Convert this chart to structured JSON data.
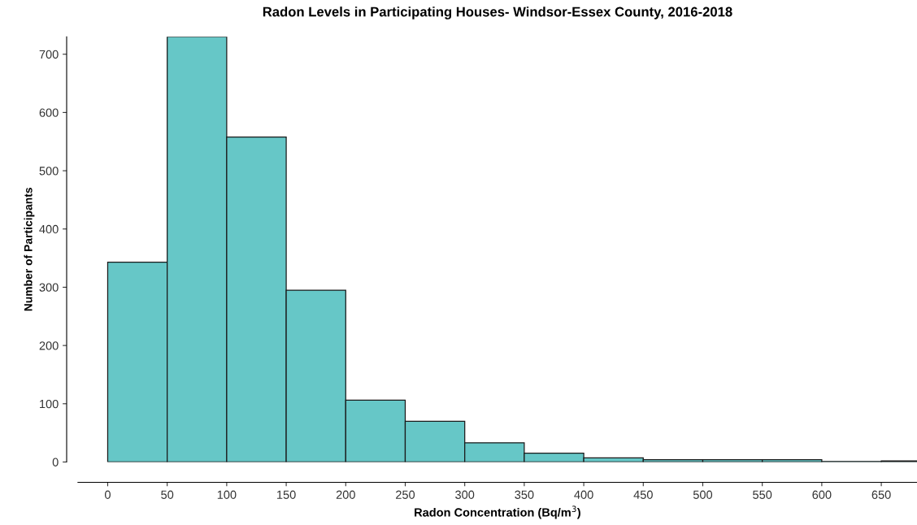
{
  "chart_data": {
    "type": "histogram",
    "title": "Radon Levels in Participating Houses- Windsor-Essex County, 2016-2018",
    "xlabel": "Radon Concentration (Bq/m$^{3}$)",
    "ylabel": "Number of Participants",
    "bins": [
      0,
      50,
      100,
      150,
      200,
      250,
      300,
      350,
      400,
      450,
      500,
      550,
      600,
      650,
      700
    ],
    "values": [
      343,
      730,
      558,
      295,
      106,
      70,
      33,
      15,
      7,
      4,
      4,
      4,
      1,
      2
    ],
    "color": "#66c7c7",
    "xlim": [
      -25,
      680
    ],
    "ylim": [
      0,
      730
    ],
    "xticks": [
      0,
      50,
      100,
      150,
      200,
      250,
      300,
      350,
      400,
      450,
      500,
      550,
      600,
      650
    ],
    "yticks": [
      0,
      100,
      200,
      300,
      400,
      500,
      600,
      700
    ],
    "grid": false
  }
}
